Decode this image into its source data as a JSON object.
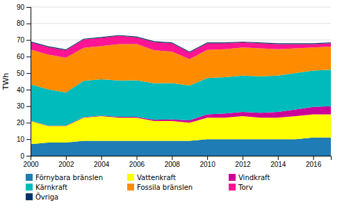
{
  "chart_data": {
    "type": "area",
    "stacked": true,
    "y_label": "TWh",
    "x": [
      2000,
      2001,
      2002,
      2003,
      2004,
      2005,
      2006,
      2007,
      2008,
      2009,
      2010,
      2011,
      2012,
      2013,
      2014,
      2015,
      2016,
      2017
    ],
    "xlim": [
      2000,
      2017
    ],
    "xticks": [
      2000,
      2002,
      2004,
      2006,
      2008,
      2010,
      2012,
      2014,
      2016
    ],
    "ylim": [
      0,
      90
    ],
    "yticks": [
      0,
      10,
      20,
      30,
      40,
      50,
      60,
      70,
      80,
      90
    ],
    "grid": "y",
    "legend": "bottom",
    "series": [
      {
        "name": "Förnybara bränslen",
        "color": "#1F7CB4",
        "values": [
          7.0,
          8.0,
          8.0,
          9.0,
          9.0,
          9.0,
          9.0,
          9.0,
          9.0,
          9.0,
          10.0,
          10.0,
          10.0,
          10.0,
          10.0,
          10.0,
          11.0,
          11.0
        ]
      },
      {
        "name": "Vattenkraft",
        "color": "#FFFF00",
        "values": [
          14.0,
          10.0,
          10.0,
          14.0,
          15.0,
          14.0,
          14.0,
          12.0,
          12.0,
          11.0,
          13.0,
          13.0,
          14.0,
          13.0,
          13.0,
          14.0,
          14.0,
          14.0
        ]
      },
      {
        "name": "Vindkraft",
        "color": "#CC0099",
        "values": [
          0.2,
          0.2,
          0.3,
          0.3,
          0.3,
          0.5,
          0.6,
          0.8,
          1.0,
          1.5,
          2.0,
          2.5,
          2.5,
          3.0,
          3.5,
          4.0,
          4.5,
          5.0
        ]
      },
      {
        "name": "Kärnkraft",
        "color": "#00BBBB",
        "values": [
          22.0,
          22.0,
          20.0,
          22.0,
          22.0,
          22.0,
          22.0,
          22.0,
          22.0,
          21.0,
          22.0,
          22.0,
          22.0,
          22.0,
          22.0,
          22.0,
          22.0,
          22.0
        ]
      },
      {
        "name": "Fossila bränslen",
        "color": "#FF8C00",
        "values": [
          21.0,
          21.0,
          21.0,
          20.0,
          20.0,
          22.0,
          22.0,
          20.0,
          19.0,
          16.0,
          17.0,
          17.0,
          17.0,
          17.0,
          16.0,
          15.0,
          14.0,
          14.0
        ]
      },
      {
        "name": "Torv",
        "color": "#FF1493",
        "values": [
          4.5,
          4.5,
          4.5,
          5.0,
          5.0,
          5.0,
          4.0,
          5.0,
          5.0,
          4.0,
          4.0,
          3.5,
          3.0,
          3.0,
          3.0,
          2.5,
          2.0,
          2.0
        ]
      },
      {
        "name": "Övriga",
        "color": "#003366",
        "values": [
          0.5,
          0.5,
          0.5,
          0.5,
          0.5,
          0.5,
          0.5,
          0.5,
          0.5,
          0.5,
          0.5,
          0.5,
          0.5,
          0.5,
          0.5,
          0.5,
          0.5,
          0.5
        ]
      }
    ]
  }
}
